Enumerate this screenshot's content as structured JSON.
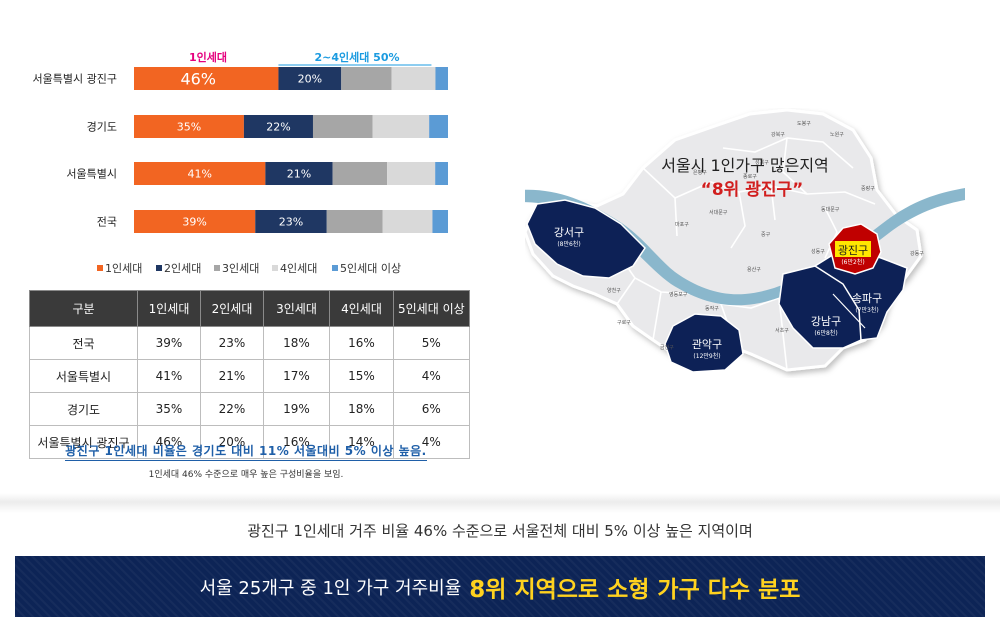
{
  "chart_data": {
    "type": "bar",
    "stacked": true,
    "orientation": "horizontal",
    "categories": [
      "서울특별시 광진구",
      "경기도",
      "서울특별시",
      "전국"
    ],
    "series": [
      {
        "name": "1인세대",
        "color": "#f26522",
        "values": [
          46,
          35,
          41,
          39
        ]
      },
      {
        "name": "2인세대",
        "color": "#1f3763",
        "values": [
          20,
          22,
          21,
          23
        ]
      },
      {
        "name": "3인세대",
        "color": "#a6a6a6",
        "values": [
          16,
          19,
          17,
          18
        ]
      },
      {
        "name": "4인세대",
        "color": "#d9d9d9",
        "values": [
          14,
          18,
          15,
          16
        ]
      },
      {
        "name": "5인세대 이상",
        "color": "#5b9bd5",
        "values": [
          4,
          6,
          4,
          5
        ]
      }
    ],
    "labels": [
      [
        "46%",
        "20%"
      ],
      [
        "35%",
        "22%"
      ],
      [
        "41%",
        "21%"
      ],
      [
        "39%",
        "23%"
      ]
    ],
    "annotations": {
      "one_person": "1인세대",
      "two_to_four": "2~4인세대 50%"
    },
    "xlim": [
      0,
      100
    ],
    "legend_position": "bottom"
  },
  "table": {
    "headers": [
      "구분",
      "1인세대",
      "2인세대",
      "3인세대",
      "4인세대",
      "5인세대 이상"
    ],
    "rows": [
      [
        "전국",
        "39%",
        "23%",
        "18%",
        "16%",
        "5%"
      ],
      [
        "서울특별시",
        "41%",
        "21%",
        "17%",
        "15%",
        "4%"
      ],
      [
        "경기도",
        "35%",
        "22%",
        "19%",
        "18%",
        "6%"
      ],
      [
        "서울특별시 광진구",
        "46%",
        "20%",
        "16%",
        "14%",
        "4%"
      ]
    ]
  },
  "notes": {
    "highlight": "광진구 1인세대 비율은 경기도 대비 11% 서울대비 5% 이상 높음.",
    "sub": "1인세대 46% 수준으로 매우 높은 구성비율을 보임."
  },
  "map": {
    "title": "서울시 1인가구 많은지역",
    "rank": "“8위 광진구”",
    "districts": [
      {
        "name": "강서구",
        "detail": "(8만6천)"
      },
      {
        "name": "광진구",
        "detail": "(6만2천)"
      },
      {
        "name": "송파구",
        "detail": "(7만3천)"
      },
      {
        "name": "강남구",
        "detail": "(6만8천)"
      },
      {
        "name": "관악구",
        "detail": "(12만9천)"
      }
    ],
    "minor_labels": [
      "도봉구",
      "강북구",
      "노원구",
      "성북구",
      "중랑구",
      "은평구",
      "종로구",
      "동대문구",
      "서대문구",
      "마포구",
      "중구",
      "성동구",
      "강동구",
      "용산구",
      "양천구",
      "영등포구",
      "동작구",
      "구로구",
      "서초구",
      "금천구"
    ]
  },
  "summary": "광진구 1인세대 거주 비율 46% 수준으로 서울전체 대비 5% 이상 높은 지역이며",
  "banner": {
    "lead": "서울 25개구 중 1인 가구 거주비율",
    "highlight": "8위 지역으로 소형 가구 다수 분포"
  }
}
